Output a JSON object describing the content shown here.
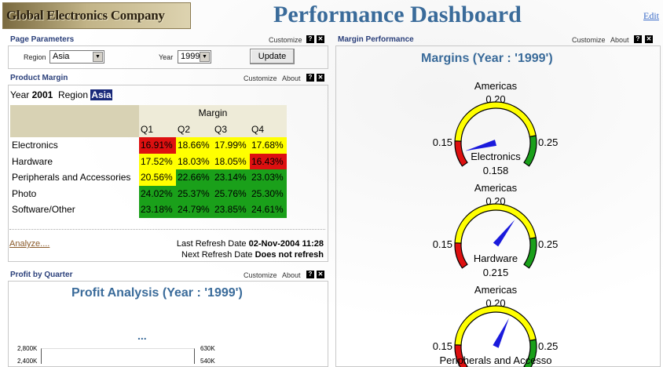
{
  "header": {
    "logo": "Global Electronics Company",
    "title": "Performance Dashboard",
    "edit": "Edit"
  },
  "page_params": {
    "title": "Page Parameters",
    "customize": "Customize",
    "region_label": "Region",
    "region_value": "Asia",
    "year_label": "Year",
    "year_value": "1999",
    "update": "Update"
  },
  "product_margin": {
    "title": "Product Margin",
    "customize": "Customize",
    "about": "About",
    "year_label": "Year",
    "year_value": "2001",
    "region_label": "Region",
    "region_value": "Asia",
    "group_header": "Margin",
    "columns": [
      "Q1",
      "Q2",
      "Q3",
      "Q4"
    ],
    "rows": [
      {
        "label": "Electronics",
        "cells": [
          {
            "v": "16.91%",
            "c": "r"
          },
          {
            "v": "18.66%",
            "c": "y"
          },
          {
            "v": "17.99%",
            "c": "y"
          },
          {
            "v": "17.68%",
            "c": "y"
          }
        ]
      },
      {
        "label": "Hardware",
        "cells": [
          {
            "v": "17.52%",
            "c": "y"
          },
          {
            "v": "18.03%",
            "c": "y"
          },
          {
            "v": "18.05%",
            "c": "y"
          },
          {
            "v": "16.43%",
            "c": "r"
          }
        ]
      },
      {
        "label": "Peripherals and Accessories",
        "cells": [
          {
            "v": "20.56%",
            "c": "y"
          },
          {
            "v": "22.66%",
            "c": "g"
          },
          {
            "v": "23.14%",
            "c": "g"
          },
          {
            "v": "23.03%",
            "c": "g"
          }
        ]
      },
      {
        "label": "Photo",
        "cells": [
          {
            "v": "24.02%",
            "c": "g"
          },
          {
            "v": "25.37%",
            "c": "g"
          },
          {
            "v": "25.76%",
            "c": "g"
          },
          {
            "v": "25.30%",
            "c": "g"
          }
        ]
      },
      {
        "label": "Software/Other",
        "cells": [
          {
            "v": "23.18%",
            "c": "g"
          },
          {
            "v": "24.79%",
            "c": "g"
          },
          {
            "v": "23.85%",
            "c": "g"
          },
          {
            "v": "24.61%",
            "c": "g"
          }
        ]
      }
    ],
    "analyze": "Analyze....",
    "last_label": "Last Refresh Date",
    "last_value": "02-Nov-2004 11:28",
    "next_label": "Next Refresh Date",
    "next_value": "Does not refresh"
  },
  "profit": {
    "title": "Profit by Quarter",
    "customize": "Customize",
    "about": "About",
    "chart_title": "Profit Analysis (Year : '1999')",
    "ellipsis": "...",
    "y_left": [
      "2,800K",
      "2,400K"
    ],
    "y_right": [
      "630K",
      "540K"
    ]
  },
  "margin_perf": {
    "title": "Margin Performance",
    "customize": "Customize",
    "about": "About",
    "chart_title": "Margins (Year : '1999')"
  },
  "chart_data": {
    "type": "gauge",
    "title": "Margins (Year : '1999')",
    "min": 0.15,
    "max": 0.25,
    "gauges": [
      {
        "region": "Americas",
        "target": "0.20",
        "label": "Electronics",
        "value": 0.158,
        "value_text": "0.158",
        "min_text": "0.15",
        "max_text": "0.25"
      },
      {
        "region": "Americas",
        "target": "0.20",
        "label": "Hardware",
        "value": 0.215,
        "value_text": "0.215",
        "min_text": "0.15",
        "max_text": "0.25"
      },
      {
        "region": "Americas",
        "target": "0.20",
        "label": "Peripherals and Accesso",
        "value": 0.21,
        "value_text": "",
        "min_text": "0.15",
        "max_text": "0.25"
      }
    ]
  },
  "colors": {
    "red": "#dd1010",
    "yellow": "#ffff00",
    "green": "#1aa01a",
    "needle": "#1a1adc",
    "title_blue": "#3a6b9a"
  }
}
